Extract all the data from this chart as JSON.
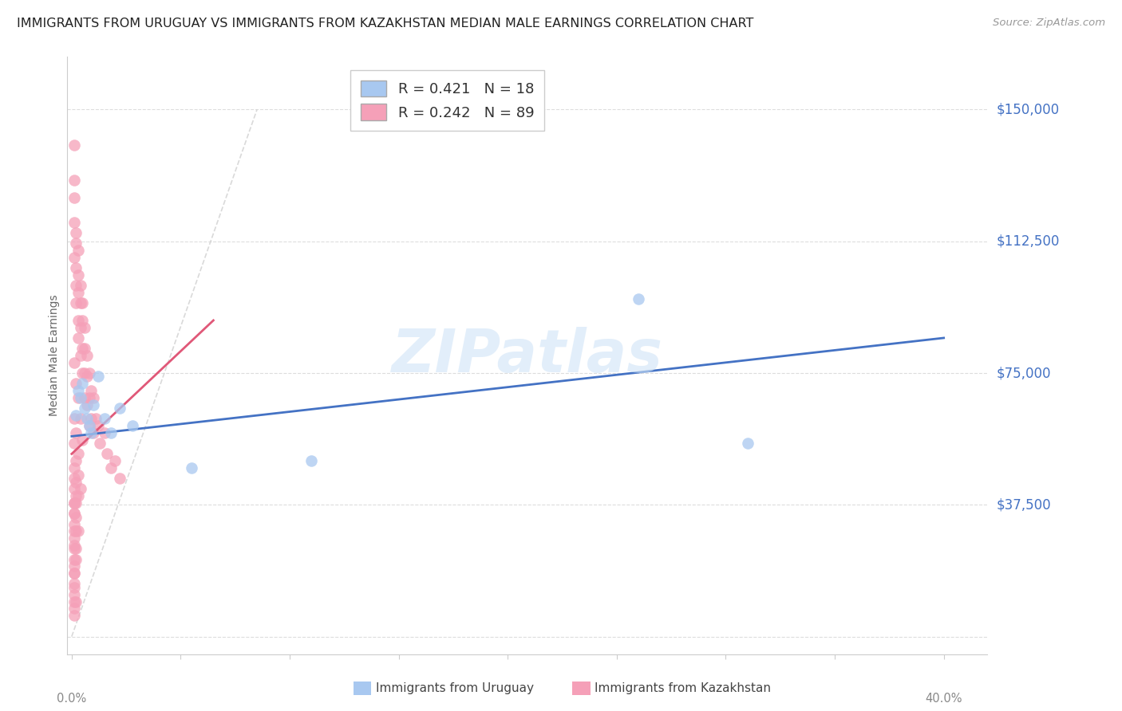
{
  "title": "IMMIGRANTS FROM URUGUAY VS IMMIGRANTS FROM KAZAKHSTAN MEDIAN MALE EARNINGS CORRELATION CHART",
  "source": "Source: ZipAtlas.com",
  "ylabel": "Median Male Earnings",
  "xlim": [
    -0.002,
    0.42
  ],
  "ylim": [
    -5000,
    165000
  ],
  "yticks": [
    0,
    37500,
    75000,
    112500,
    150000
  ],
  "xticks": [
    0.0,
    0.05,
    0.1,
    0.15,
    0.2,
    0.25,
    0.3,
    0.35,
    0.4
  ],
  "legend_line1": "R = 0.421   N = 18",
  "legend_line2": "R = 0.242   N = 89",
  "color_uruguay": "#a8c8f0",
  "color_kazakhstan": "#f5a0b8",
  "trendline_color_uruguay": "#4472c4",
  "trendline_color_kazakhstan": "#e05878",
  "diagonal_color": "#d0d0d0",
  "watermark": "ZIPatlas",
  "background_color": "#ffffff",
  "tick_label_color": "#4472c4",
  "right_ytick_labels": [
    "$37,500",
    "$75,000",
    "$112,500",
    "$150,000"
  ],
  "right_ytick_vals": [
    37500,
    75000,
    112500,
    150000
  ],
  "uruguay_x": [
    0.002,
    0.003,
    0.004,
    0.005,
    0.006,
    0.007,
    0.008,
    0.009,
    0.01,
    0.012,
    0.015,
    0.018,
    0.022,
    0.028,
    0.055,
    0.11,
    0.26,
    0.31
  ],
  "uruguay_y": [
    63000,
    70000,
    68000,
    72000,
    65000,
    62000,
    60000,
    58000,
    66000,
    74000,
    62000,
    58000,
    65000,
    60000,
    48000,
    50000,
    96000,
    55000
  ],
  "kazakhstan_x": [
    0.001,
    0.001,
    0.001,
    0.001,
    0.001,
    0.002,
    0.002,
    0.002,
    0.002,
    0.002,
    0.003,
    0.003,
    0.003,
    0.003,
    0.003,
    0.004,
    0.004,
    0.004,
    0.004,
    0.005,
    0.005,
    0.005,
    0.005,
    0.006,
    0.006,
    0.006,
    0.006,
    0.007,
    0.007,
    0.007,
    0.008,
    0.008,
    0.008,
    0.009,
    0.009,
    0.01,
    0.01,
    0.011,
    0.012,
    0.013,
    0.015,
    0.016,
    0.018,
    0.02,
    0.022,
    0.001,
    0.002,
    0.003,
    0.004,
    0.005,
    0.001,
    0.002,
    0.003,
    0.001,
    0.002,
    0.003,
    0.004,
    0.001,
    0.002,
    0.003,
    0.001,
    0.002,
    0.001,
    0.002,
    0.003,
    0.001,
    0.002,
    0.001,
    0.001,
    0.002,
    0.001,
    0.002,
    0.001,
    0.001,
    0.001,
    0.001,
    0.002,
    0.001,
    0.001,
    0.001,
    0.001,
    0.001,
    0.001,
    0.001,
    0.001,
    0.001,
    0.001,
    0.001,
    0.002
  ],
  "kazakhstan_y": [
    140000,
    130000,
    125000,
    118000,
    108000,
    115000,
    112000,
    105000,
    100000,
    95000,
    110000,
    103000,
    98000,
    90000,
    85000,
    100000,
    95000,
    88000,
    80000,
    95000,
    90000,
    82000,
    75000,
    88000,
    82000,
    75000,
    68000,
    80000,
    74000,
    66000,
    75000,
    68000,
    60000,
    70000,
    62000,
    68000,
    58000,
    62000,
    60000,
    55000,
    58000,
    52000,
    48000,
    50000,
    45000,
    78000,
    72000,
    68000,
    62000,
    56000,
    62000,
    58000,
    52000,
    55000,
    50000,
    46000,
    42000,
    48000,
    44000,
    40000,
    42000,
    38000,
    38000,
    34000,
    30000,
    35000,
    30000,
    32000,
    28000,
    25000,
    25000,
    22000,
    20000,
    18000,
    15000,
    12000,
    10000,
    8000,
    6000,
    45000,
    38000,
    35000,
    30000,
    26000,
    22000,
    18000,
    14000,
    10000,
    40000
  ]
}
